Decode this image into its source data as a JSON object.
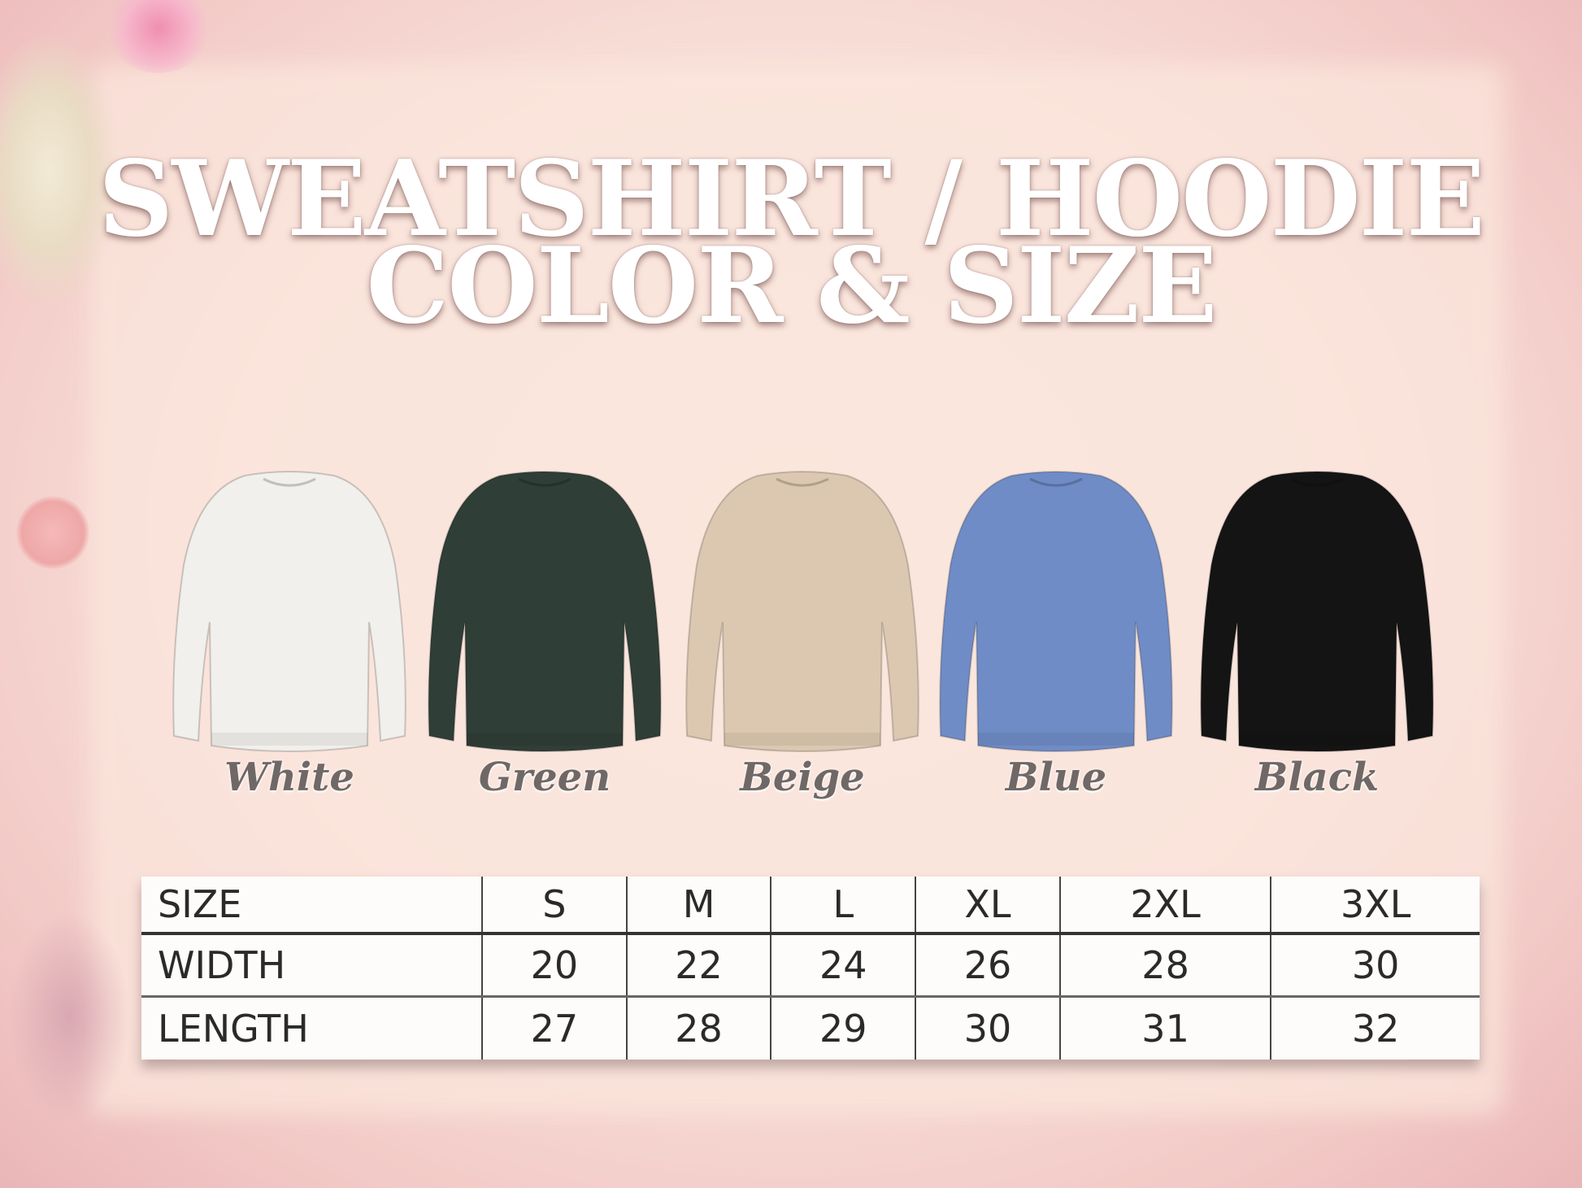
{
  "title": {
    "line1": "SWEATSHIRT / HOODIE",
    "line2": "COLOR & SIZE"
  },
  "colors": [
    {
      "label": "White",
      "hex": "#f1f0ec"
    },
    {
      "label": "Green",
      "hex": "#2f3e37"
    },
    {
      "label": "Beige",
      "hex": "#dcc8b0"
    },
    {
      "label": "Blue",
      "hex": "#6f8cc6"
    },
    {
      "label": "Black",
      "hex": "#141414"
    }
  ],
  "table": {
    "header": [
      "SIZE",
      "S",
      "M",
      "L",
      "XL",
      "2XL",
      "3XL"
    ],
    "rows": [
      [
        "WIDTH",
        "20",
        "22",
        "24",
        "26",
        "28",
        "30"
      ],
      [
        "LENGTH",
        "27",
        "28",
        "29",
        "30",
        "31",
        "32"
      ]
    ]
  }
}
